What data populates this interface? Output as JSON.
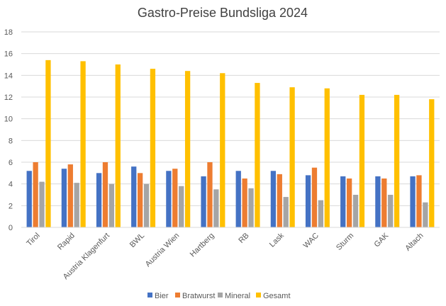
{
  "chart_data": {
    "type": "bar",
    "title": "Gastro-Preise Bundsliga 2024",
    "xlabel": "",
    "ylabel": "",
    "ylim": [
      0,
      18
    ],
    "yticks": [
      0,
      2,
      4,
      6,
      8,
      10,
      12,
      14,
      16,
      18
    ],
    "ytick_labels": [
      "0",
      "2",
      "4",
      "6",
      "8",
      "10",
      "12",
      "14",
      "16",
      "18"
    ],
    "grid": true,
    "legend_position": "bottom",
    "categories": [
      "Tirol",
      "Rapid",
      "Austria Klagenfurt",
      "BWL",
      "Austria Wien",
      "Hartberg",
      "RB",
      "Lask",
      "WAC",
      "Sturm",
      "GAK",
      "Altach"
    ],
    "series": [
      {
        "name": "Bier",
        "color": "#4472C4",
        "values": [
          5.2,
          5.4,
          5.0,
          5.6,
          5.2,
          4.7,
          5.2,
          5.2,
          4.8,
          4.7,
          4.7,
          4.7
        ]
      },
      {
        "name": "Bratwurst",
        "color": "#ED7D31",
        "values": [
          6.0,
          5.8,
          6.0,
          5.0,
          5.4,
          6.0,
          4.5,
          4.9,
          5.5,
          4.5,
          4.5,
          4.8
        ]
      },
      {
        "name": "Mineral",
        "color": "#A5A5A5",
        "values": [
          4.2,
          4.1,
          4.0,
          4.0,
          3.8,
          3.5,
          3.6,
          2.8,
          2.5,
          3.0,
          3.0,
          2.3
        ]
      },
      {
        "name": "Gesamt",
        "color": "#FFC000",
        "values": [
          15.4,
          15.3,
          15.0,
          14.6,
          14.4,
          14.2,
          13.3,
          12.9,
          12.8,
          12.2,
          12.2,
          11.8
        ]
      }
    ]
  }
}
